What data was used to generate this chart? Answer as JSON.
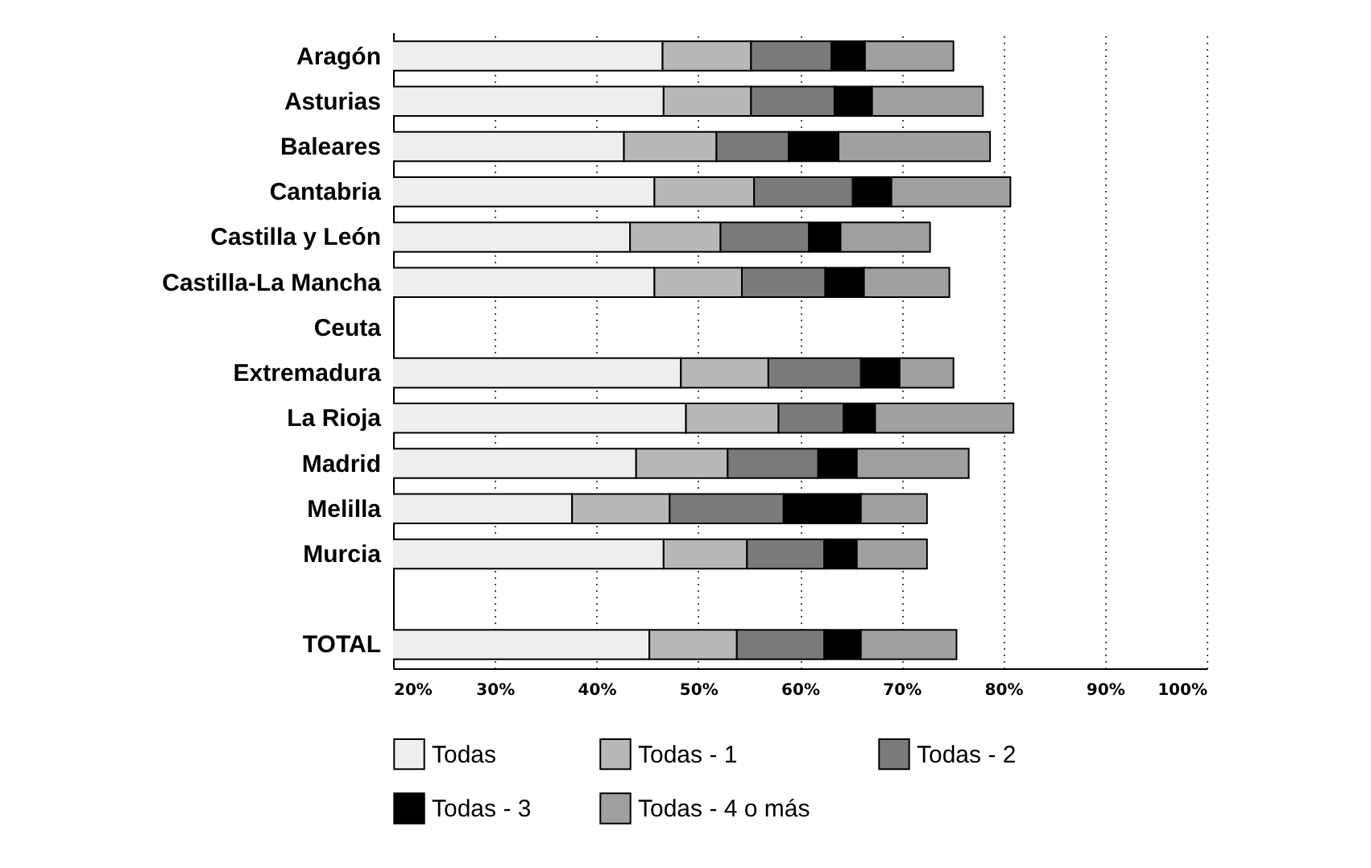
{
  "chart_data": {
    "type": "bar",
    "orientation": "horizontal",
    "stacked": true,
    "categories": [
      "Aragón",
      "Asturias",
      "Baleares",
      "Cantabria",
      "Castilla y León",
      "Castilla-La Mancha",
      "Ceuta",
      "Extremadura",
      "La Rioja",
      "Madrid",
      "Melilla",
      "Murcia",
      null,
      "TOTAL"
    ],
    "series": [
      {
        "name": "Todas",
        "color": "#eeeeee",
        "values": [
          46.5,
          46.6,
          42.7,
          45.7,
          43.3,
          45.7,
          null,
          48.3,
          48.8,
          43.9,
          37.6,
          46.6,
          null,
          45.2
        ]
      },
      {
        "name": "Todas - 1",
        "color": "#b8b8b8",
        "base": [
          46.5,
          46.6,
          42.7,
          45.7,
          43.3,
          45.7,
          null,
          48.3,
          48.8,
          43.9,
          37.6,
          46.6,
          null,
          45.2
        ],
        "values": [
          8.7,
          8.6,
          9.1,
          9.8,
          8.9,
          8.6,
          null,
          8.6,
          9.1,
          9.0,
          9.6,
          8.2,
          null,
          8.6
        ]
      },
      {
        "name": "Todas - 2",
        "color": "#7a7a7a",
        "base": [
          55.2,
          55.2,
          51.8,
          55.5,
          52.2,
          54.3,
          null,
          56.9,
          57.9,
          52.9,
          47.2,
          54.8,
          null,
          53.8
        ],
        "values": [
          7.9,
          8.2,
          7.1,
          9.7,
          8.7,
          8.2,
          null,
          9.1,
          6.4,
          8.9,
          11.2,
          7.6,
          null,
          8.6
        ]
      },
      {
        "name": "Todas - 3",
        "color": "#000000",
        "base": [
          63.1,
          63.4,
          58.9,
          65.2,
          60.9,
          62.5,
          null,
          66.0,
          64.3,
          61.8,
          58.4,
          62.4,
          null,
          62.4
        ],
        "values": [
          3.3,
          3.7,
          4.9,
          3.8,
          3.1,
          3.8,
          null,
          3.8,
          3.1,
          3.8,
          7.6,
          3.2,
          null,
          3.6
        ]
      },
      {
        "name": "Todas - 4 o más",
        "color": "#a0a0a0",
        "base": [
          66.4,
          67.1,
          63.8,
          69.0,
          64.0,
          66.3,
          null,
          69.8,
          67.4,
          65.6,
          66.0,
          65.6,
          null,
          66.0
        ],
        "values": [
          8.7,
          10.9,
          14.9,
          11.7,
          8.8,
          8.4,
          null,
          5.3,
          13.6,
          11.0,
          6.5,
          6.9,
          null,
          9.4
        ]
      }
    ],
    "xlim": [
      20,
      100
    ],
    "xticks": [
      {
        "value": 20,
        "label": "20%"
      },
      {
        "value": 30,
        "label": "30%"
      },
      {
        "value": 40,
        "label": "40%"
      },
      {
        "value": 50,
        "label": "50%"
      },
      {
        "value": 60,
        "label": "60%"
      },
      {
        "value": 70,
        "label": "70%"
      },
      {
        "value": 80,
        "label": "80%"
      },
      {
        "value": 90,
        "label": "90%"
      },
      {
        "value": 100,
        "label": "100%"
      }
    ],
    "grid": "x",
    "legend": "bottom"
  }
}
